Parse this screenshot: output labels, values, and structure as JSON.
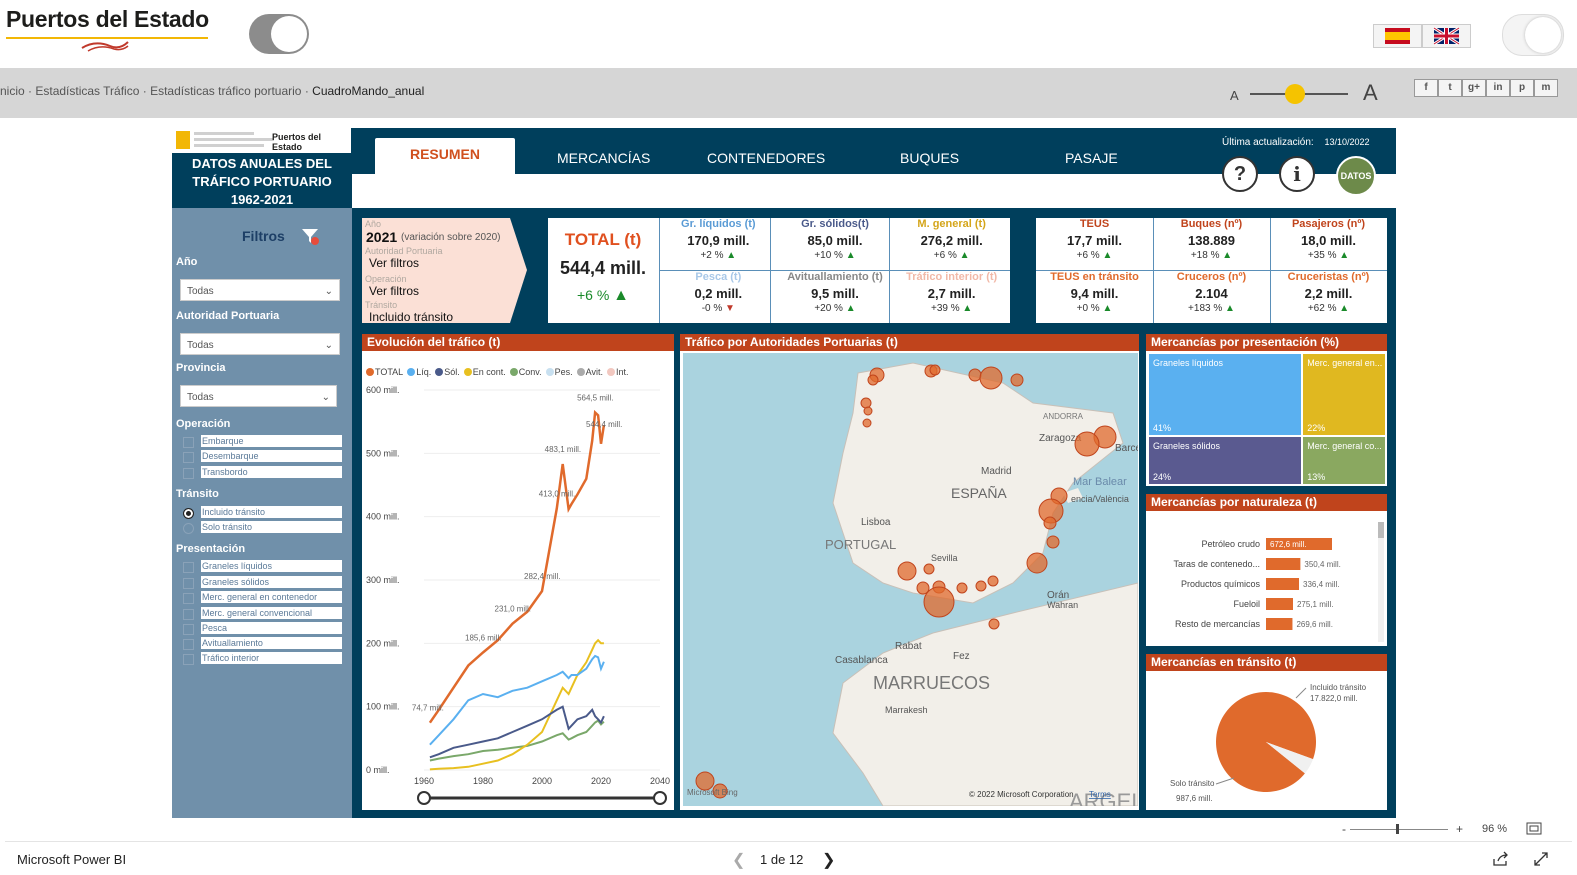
{
  "site": {
    "logo_text": "Puertos del Estado",
    "breadcrumb": [
      "nicio",
      "Estadísticas Tráfico",
      "Estadísticas tráfico portuario",
      "CuadroMando_anual"
    ],
    "font_small": "A",
    "font_large": "A",
    "social": [
      "f",
      "t",
      "g+",
      "in",
      "p",
      "m"
    ]
  },
  "report": {
    "brand_small": "Puertos del Estado",
    "title_lines": [
      "DATOS ANUALES DEL",
      "TRÁFICO PORTUARIO",
      "1962-2021"
    ],
    "tabs": [
      "RESUMEN",
      "MERCANCÍAS",
      "CONTENEDORES",
      "BUQUES",
      "PASAJE"
    ],
    "update_label": "Última actualización:",
    "update_date": "13/10/2022",
    "help_glyph": "?",
    "info_glyph": "i",
    "datos_label": "DATOS"
  },
  "filters": {
    "title": "Filtros",
    "ano_label": "Año",
    "ano_value": "Todas",
    "ap_label": "Autoridad Portuaria",
    "ap_value": "Todas",
    "prov_label": "Provincia",
    "prov_value": "Todas",
    "operacion_label": "Operación",
    "operacion": [
      "Embarque",
      "Desembarque",
      "Transbordo"
    ],
    "transito_label": "Tránsito",
    "transito": [
      "Incluido tránsito",
      "Solo tránsito"
    ],
    "presentacion_label": "Presentación",
    "presentacion": [
      "Graneles líquidos",
      "Graneles sólidos",
      "Merc. general en contenedor",
      "Merc. general convencional",
      "Pesca",
      "Avituallamiento",
      "Tráfico interior"
    ]
  },
  "summary": {
    "ano_label": "Año",
    "ano_value": "2021",
    "ano_note": "(variación sobre 2020)",
    "ap_label": "Autoridad Portuaria",
    "ap_value": "Ver filtros",
    "op_label": "Operación",
    "op_value": "Ver filtros",
    "tr_label": "Tránsito",
    "tr_value": "Incluido tránsito"
  },
  "kpis": {
    "total_label": "TOTAL (t)",
    "total_value": "544,4 mill.",
    "total_pct": "+6 %",
    "row1": [
      {
        "h": "Gr. líquidos (t)",
        "v": "170,9 mill.",
        "p": "+2 %",
        "dir": "up",
        "color": "#5a9bd5"
      },
      {
        "h": "Gr. sólidos(t)",
        "v": "85,0 mill.",
        "p": "+10 %",
        "dir": "up",
        "color": "#4a5a8a"
      },
      {
        "h": "M. general (t)",
        "v": "276,2 mill.",
        "p": "+6 %",
        "dir": "up",
        "color": "#d4a51a"
      }
    ],
    "row2": [
      {
        "h": "Pesca (t)",
        "v": "0,2 mill.",
        "p": "-0 %",
        "dir": "down",
        "color": "#a8c8e8"
      },
      {
        "h": "Avituallamiento (t)",
        "v": "9,5 mill.",
        "p": "+20 %",
        "dir": "up",
        "color": "#888888"
      },
      {
        "h": "Tráfico interior (t)",
        "v": "2,7 mill.",
        "p": "+39 %",
        "dir": "up",
        "color": "#f2b9a8"
      }
    ],
    "row3": [
      {
        "h": "TEUS",
        "v": "17,7 mill.",
        "p": "+6 %",
        "dir": "up",
        "color": "#c0441c"
      },
      {
        "h": "Buques (nº)",
        "v": "138.889",
        "p": "+18 %",
        "dir": "up",
        "color": "#c0441c"
      },
      {
        "h": "Pasajeros (nº)",
        "v": "18,0 mill.",
        "p": "+35 %",
        "dir": "up",
        "color": "#c0441c"
      }
    ],
    "row4": [
      {
        "h": "TEUS en tránsito",
        "v": "9,4 mill.",
        "p": "+0 %",
        "dir": "up",
        "color": "#e06a2c"
      },
      {
        "h": "Cruceros (nº)",
        "v": "2.104",
        "p": "+183 %",
        "dir": "up",
        "color": "#e06a2c"
      },
      {
        "h": "Cruceristas (nº)",
        "v": "2,2 mill.",
        "p": "+62 %",
        "dir": "up",
        "color": "#e06a2c"
      }
    ]
  },
  "evolucion": {
    "title": "Evolución del tráfico (t)",
    "legend": [
      {
        "name": "TOTAL",
        "color": "#e06a2c"
      },
      {
        "name": "Líq.",
        "color": "#5ab0f0"
      },
      {
        "name": "Sól.",
        "color": "#4a5a8a"
      },
      {
        "name": "En cont.",
        "color": "#e8c020"
      },
      {
        "name": "Conv.",
        "color": "#7aa86a"
      },
      {
        "name": "Pes.",
        "color": "#c8e0f0"
      },
      {
        "name": "Avit.",
        "color": "#aaaaaa"
      },
      {
        "name": "Int.",
        "color": "#f2c8c0"
      }
    ],
    "y_ticks": [
      "600 mill.",
      "500 mill.",
      "400 mill.",
      "300 mill.",
      "200 mill.",
      "100 mill.",
      "0 mill."
    ],
    "x_ticks": [
      "1960",
      "1980",
      "2000",
      "2020",
      "2040"
    ],
    "point_labels": [
      "74,7 mill.",
      "185,6 mill.",
      "231,0 mill.",
      "282,4 mill.",
      "413,0 mill.",
      "483,1 mill.",
      "564,5 mill.",
      "544,4 mill."
    ]
  },
  "chart_data": {
    "type": "line",
    "title": "Evolución del tráfico (t)",
    "xlim": [
      1960,
      2040
    ],
    "ylim": [
      0,
      600
    ],
    "ylabel": "",
    "x": [
      1962,
      1965,
      1970,
      1975,
      1980,
      1985,
      1990,
      1995,
      2000,
      2005,
      2007,
      2009,
      2010,
      2012,
      2015,
      2017,
      2018,
      2019,
      2020,
      2021
    ],
    "series": [
      {
        "name": "TOTAL",
        "values": [
          74.7,
          95,
          130,
          165,
          185.6,
          205,
          231.0,
          250,
          282.4,
          413.0,
          483.1,
          412,
          420,
          435,
          460,
          520,
          564.5,
          560,
          515,
          544.4
        ]
      },
      {
        "name": "Líq.",
        "values": [
          40,
          55,
          80,
          110,
          120,
          115,
          125,
          130,
          140,
          150,
          155,
          145,
          150,
          150,
          160,
          175,
          180,
          178,
          160,
          170.9
        ]
      },
      {
        "name": "Sól.",
        "values": [
          20,
          25,
          35,
          40,
          45,
          50,
          60,
          70,
          80,
          95,
          100,
          65,
          70,
          80,
          85,
          95,
          85,
          80,
          75,
          85.0
        ]
      },
      {
        "name": "En cont.",
        "values": [
          1,
          2,
          3,
          5,
          10,
          15,
          25,
          40,
          60,
          110,
          130,
          120,
          130,
          150,
          170,
          190,
          200,
          205,
          200,
          200
        ]
      },
      {
        "name": "Conv.",
        "values": [
          15,
          18,
          22,
          25,
          30,
          32,
          35,
          38,
          45,
          55,
          58,
          48,
          50,
          55,
          60,
          70,
          75,
          78,
          72,
          76.2
        ]
      }
    ]
  },
  "mapa": {
    "title": "Tráfico por Autoridades Portuarias (t)",
    "labels": [
      "ANDORRA",
      "Zaragoza",
      "Barce",
      "Madrid",
      "ESPAÑA",
      "Mar Balear",
      "encia/València",
      "Lisboa",
      "PORTUGAL",
      "Sevilla",
      "Orán",
      "Wahran",
      "Rabat",
      "Fez",
      "Casablanca",
      "MARRUECOS",
      "Marrakesh",
      "ARGEL",
      "Microsoft Bing",
      "© 2022 Microsoft Corporation",
      "Terms"
    ]
  },
  "presentacion": {
    "title": "Mercancías por presentación (%)",
    "cells": [
      {
        "name": "Graneles líquidos",
        "pct": "41%",
        "color": "#5ab0f0"
      },
      {
        "name": "Merc. general en...",
        "pct": "22%",
        "color": "#e0b820"
      },
      {
        "name": "Graneles sólidos",
        "pct": "24%",
        "color": "#5a5a90"
      },
      {
        "name": "Merc. general co...",
        "pct": "13%",
        "color": "#8aa860"
      }
    ]
  },
  "naturaleza": {
    "title": "Mercancías por naturaleza (t)",
    "items": [
      {
        "name": "Petróleo crudo",
        "value": 672.6,
        "label": "672,6 mill."
      },
      {
        "name": "Taras de contenedo...",
        "value": 350.4,
        "label": "350,4 mill."
      },
      {
        "name": "Productos químicos",
        "value": 336.4,
        "label": "336,4 mill."
      },
      {
        "name": "Fueloil",
        "value": 275.1,
        "label": "275,1 mill."
      },
      {
        "name": "Resto de mercancías",
        "value": 269.6,
        "label": "269,6 mill."
      }
    ]
  },
  "transito": {
    "title": "Mercancías en tránsito (t)",
    "slices": [
      {
        "name": "Incluido tránsito",
        "label": "17.822,0 mill.",
        "value": 17822.0,
        "color": "#e06a2c"
      },
      {
        "name": "Solo tránsito",
        "label": "987,6 mill.",
        "value": 987.6,
        "color": "#f0f0f0"
      }
    ]
  },
  "footer": {
    "brand": "Microsoft Power BI",
    "page": "1 de 12",
    "zoom": "96 %",
    "minus": "-",
    "plus": "+"
  }
}
